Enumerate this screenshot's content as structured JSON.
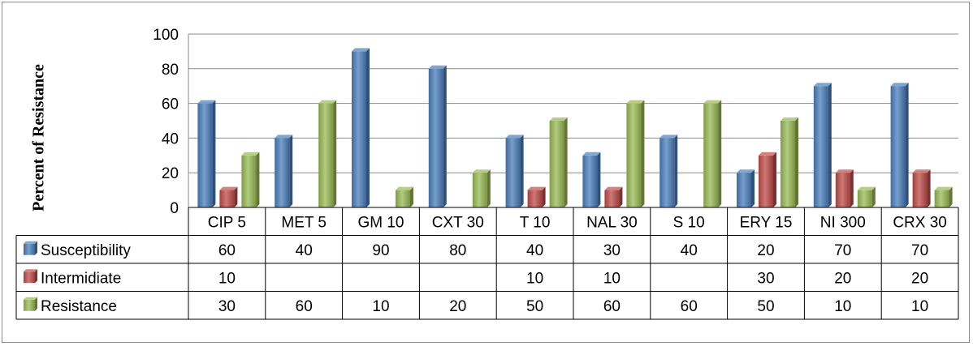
{
  "chart_data": {
    "type": "bar",
    "title": "",
    "xlabel": "",
    "ylabel": "Percent of Resistance",
    "ylim": [
      0,
      100
    ],
    "yticks": [
      0,
      20,
      40,
      60,
      80,
      100
    ],
    "grid": true,
    "legend": "data-table-left",
    "categories": [
      "CIP 5",
      "MET 5",
      "GM 10",
      "CXT 30",
      "T 10",
      "NAL 30",
      "S 10",
      "ERY 15",
      "NI 300",
      "CRX 30"
    ],
    "series": [
      {
        "name": "Susceptibility",
        "color": "#4a7ebb",
        "values": [
          60,
          40,
          90,
          80,
          40,
          30,
          40,
          20,
          70,
          70
        ]
      },
      {
        "name": "Intermidiate",
        "color": "#be4b48",
        "values": [
          10,
          null,
          null,
          null,
          10,
          10,
          null,
          30,
          20,
          20
        ]
      },
      {
        "name": "Resistance",
        "color": "#98b954",
        "values": [
          30,
          60,
          10,
          20,
          50,
          60,
          60,
          50,
          10,
          10
        ]
      }
    ]
  }
}
